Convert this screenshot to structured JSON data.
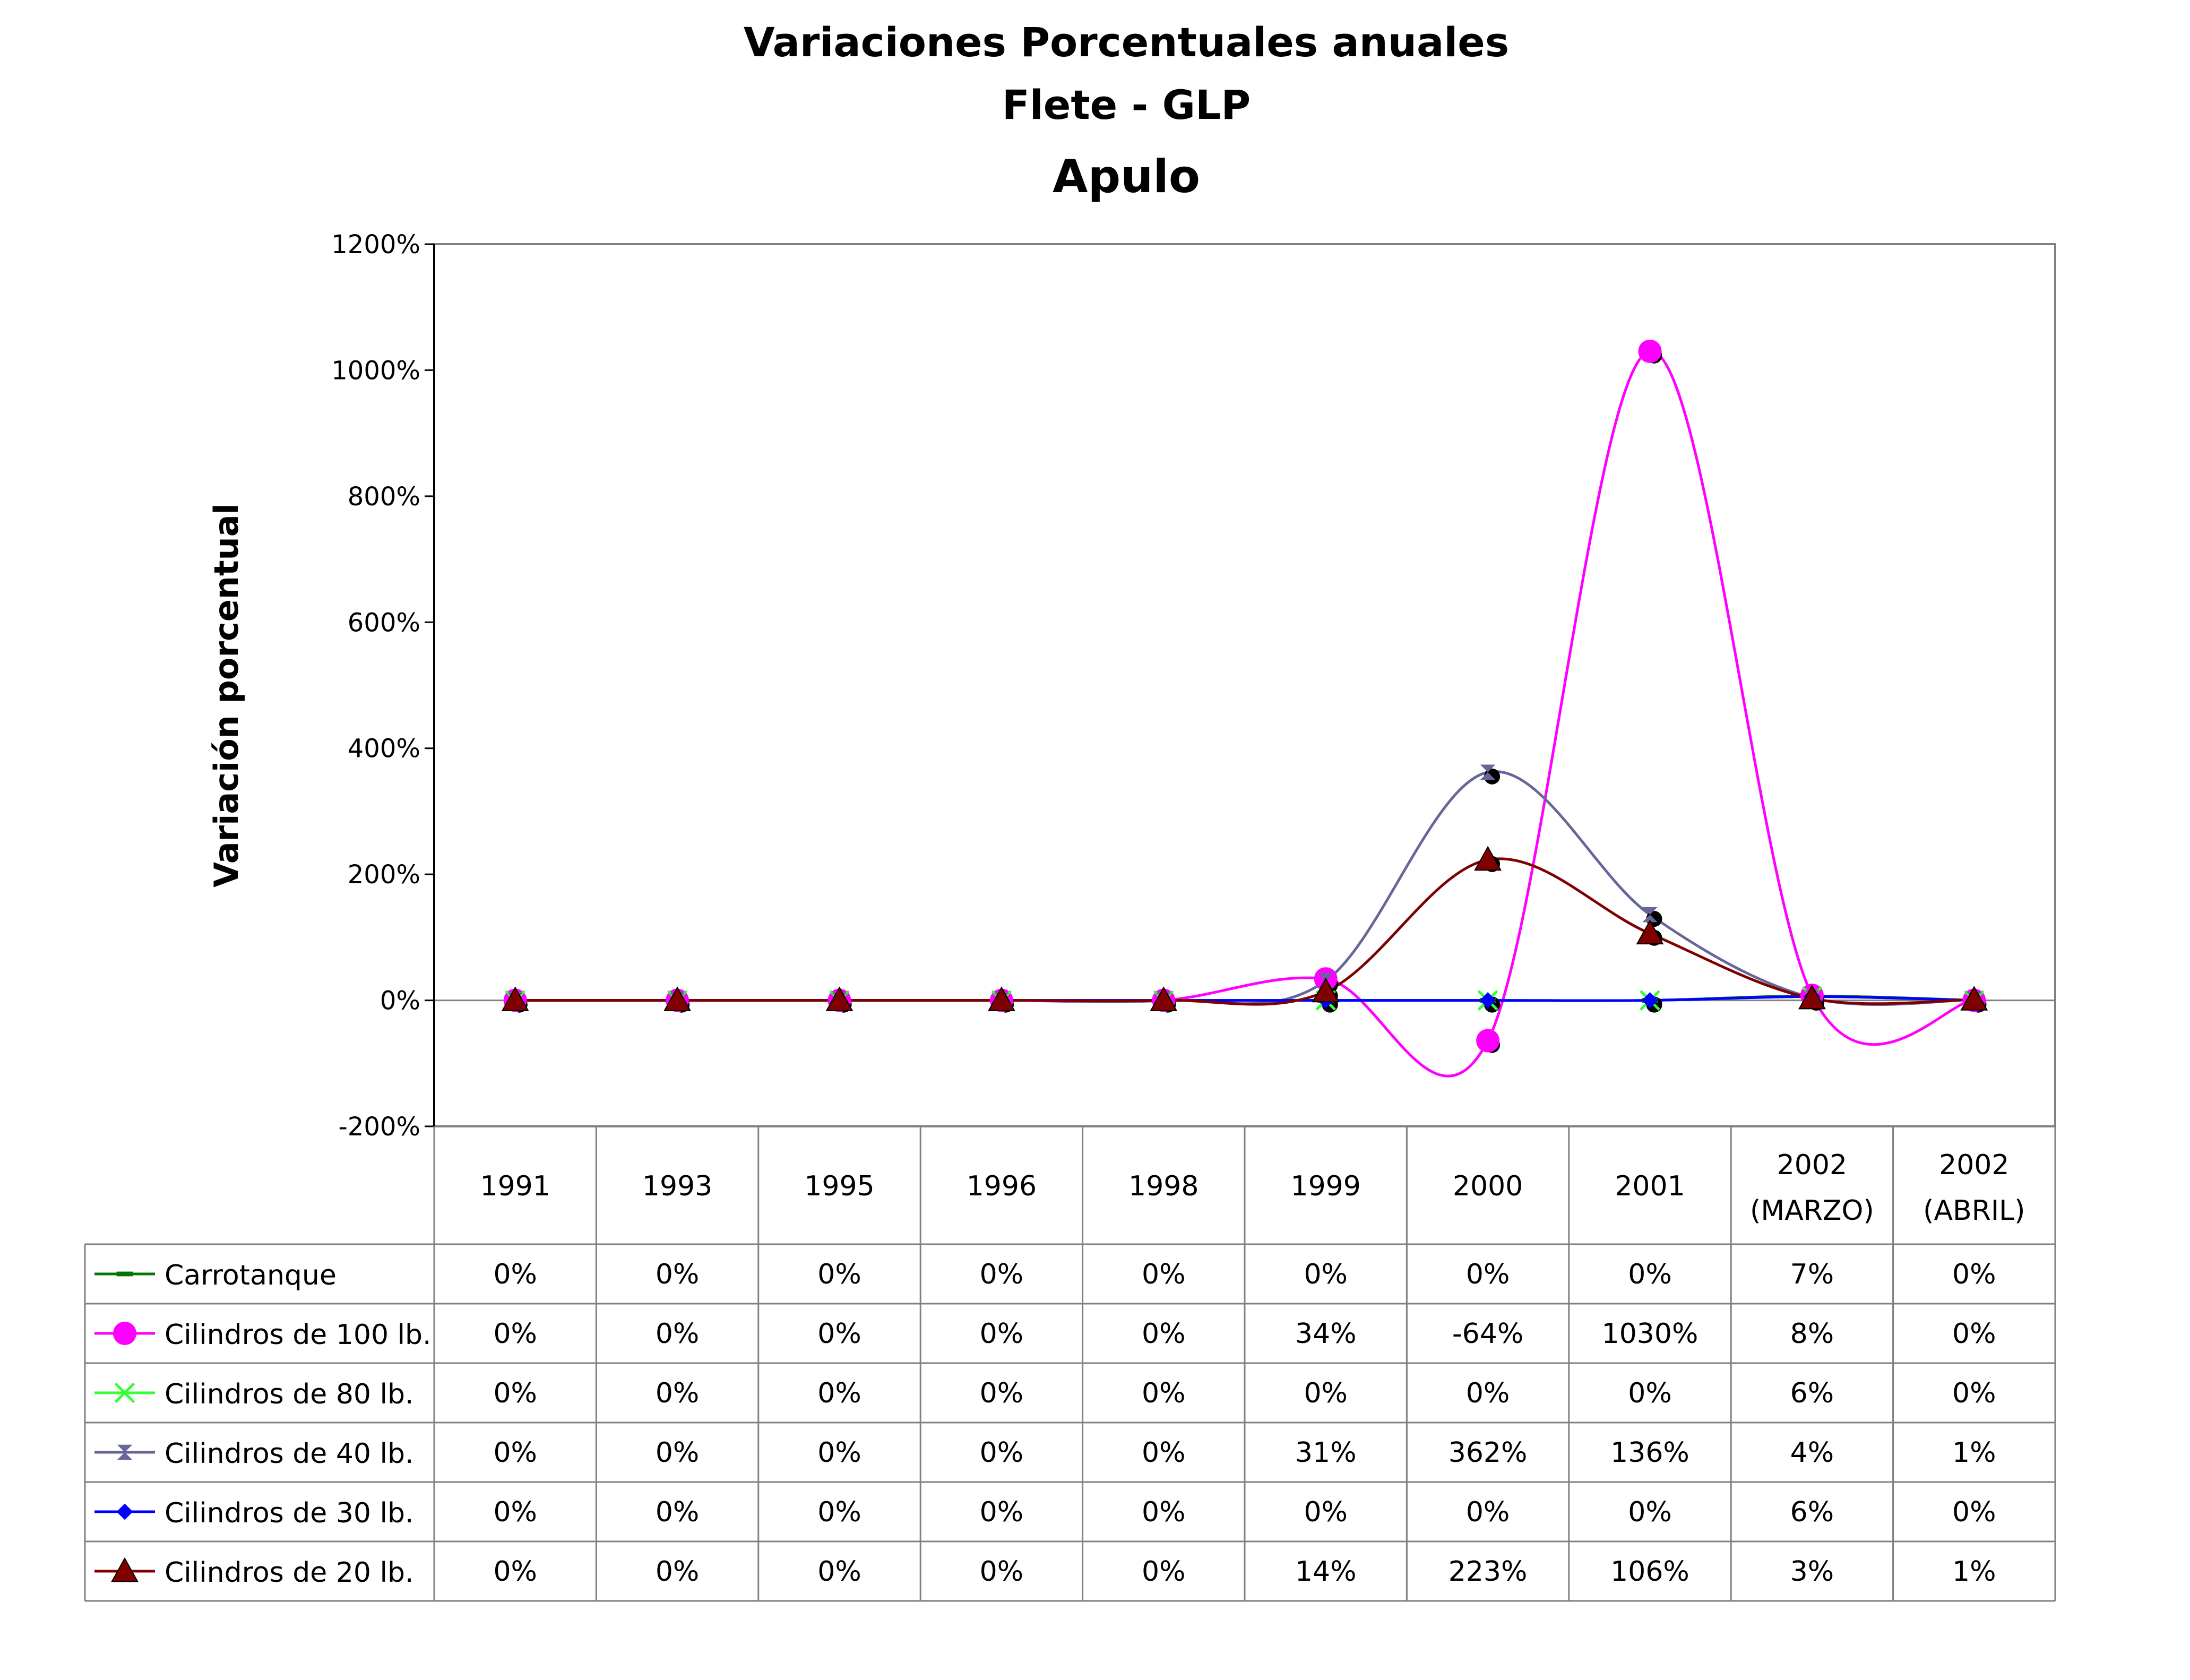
{
  "chart_data": {
    "type": "line",
    "title": "Variaciones Porcentuales anuales",
    "subtitle": "Flete - GLP",
    "subtitle2": "Apulo",
    "xlabel": "",
    "ylabel": "Variación porcentual",
    "ylim": [
      -200,
      1200
    ],
    "yticks": [
      -200,
      0,
      200,
      400,
      600,
      800,
      1000,
      1200
    ],
    "ytick_labels": [
      "-200%",
      "0%",
      "200%",
      "400%",
      "600%",
      "800%",
      "1000%",
      "1200%"
    ],
    "grid": false,
    "legend": "data-table-left",
    "categories": [
      [
        "1991"
      ],
      [
        "1993"
      ],
      [
        "1995"
      ],
      [
        "1996"
      ],
      [
        "1998"
      ],
      [
        "1999"
      ],
      [
        "2000"
      ],
      [
        "2001"
      ],
      [
        "2002",
        "(MARZO)"
      ],
      [
        "2002",
        "(ABRIL)"
      ]
    ],
    "series": [
      {
        "name": "Carrotanque",
        "color": "#007700",
        "marker": "dash",
        "values": [
          0,
          0,
          0,
          0,
          0,
          0,
          0,
          0,
          7,
          0
        ],
        "labels": [
          "0%",
          "0%",
          "0%",
          "0%",
          "0%",
          "0%",
          "0%",
          "0%",
          "7%",
          "0%"
        ]
      },
      {
        "name": "Cilindros de 100 lb.",
        "color": "#ff00ff",
        "marker": "circle",
        "values": [
          0,
          0,
          0,
          0,
          0,
          34,
          -64,
          1030,
          8,
          0
        ],
        "labels": [
          "0%",
          "0%",
          "0%",
          "0%",
          "0%",
          "34%",
          "-64%",
          "1030%",
          "8%",
          "0%"
        ]
      },
      {
        "name": "Cilindros de 80 lb.",
        "color": "#33ff33",
        "marker": "x",
        "values": [
          0,
          0,
          0,
          0,
          0,
          0,
          0,
          0,
          6,
          0
        ],
        "labels": [
          "0%",
          "0%",
          "0%",
          "0%",
          "0%",
          "0%",
          "0%",
          "0%",
          "6%",
          "0%"
        ]
      },
      {
        "name": "Cilindros de 40 lb.",
        "color": "#666699",
        "marker": "bowtie",
        "values": [
          0,
          0,
          0,
          0,
          0,
          31,
          362,
          136,
          4,
          1
        ],
        "labels": [
          "0%",
          "0%",
          "0%",
          "0%",
          "0%",
          "31%",
          "362%",
          "136%",
          "4%",
          "1%"
        ]
      },
      {
        "name": "Cilindros de 30 lb.",
        "color": "#0000ff",
        "marker": "diamond",
        "values": [
          0,
          0,
          0,
          0,
          0,
          0,
          0,
          0,
          6,
          0
        ],
        "labels": [
          "0%",
          "0%",
          "0%",
          "0%",
          "0%",
          "0%",
          "0%",
          "0%",
          "6%",
          "0%"
        ]
      },
      {
        "name": "Cilindros de 20 lb.",
        "color": "#800000",
        "marker": "triangle",
        "values": [
          0,
          0,
          0,
          0,
          0,
          14,
          223,
          106,
          3,
          1
        ],
        "labels": [
          "0%",
          "0%",
          "0%",
          "0%",
          "0%",
          "14%",
          "223%",
          "106%",
          "3%",
          "1%"
        ]
      }
    ]
  }
}
